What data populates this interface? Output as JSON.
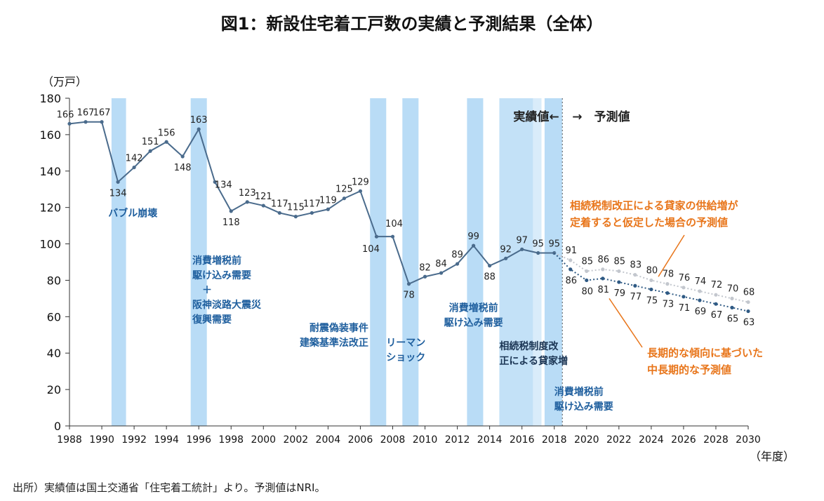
{
  "page": {
    "title": "図1：新設住宅着工戸数の実績と予測結果（全体）",
    "source": "出所）実績値は国土交通省「住宅着工統計」より。予測値はNRI。"
  },
  "colors": {
    "actual": "#4a6b8c",
    "forecast_high": "#c3c7ce",
    "forecast_low": "#2f5a84",
    "band": "#b9dcf6",
    "band_light": "#d9ecfa",
    "annotation": "#1f5f9e",
    "orange": "#e8751a"
  },
  "chart_data": {
    "type": "line",
    "title": "図1：新設住宅着工戸数の実績と予測結果（全体）",
    "ylabel": "（万戸）",
    "xlabel": "（年度）",
    "ylim": [
      0,
      180
    ],
    "xlim": [
      1988,
      2030
    ],
    "yticks": [
      0,
      20,
      40,
      60,
      80,
      100,
      120,
      140,
      160,
      180
    ],
    "xticks": [
      1988,
      1990,
      1992,
      1994,
      1996,
      1998,
      2000,
      2002,
      2004,
      2006,
      2008,
      2010,
      2012,
      2014,
      2016,
      2018,
      2020,
      2022,
      2024,
      2026,
      2028,
      2030
    ],
    "series": [
      {
        "name": "実績値",
        "x": [
          1988,
          1989,
          1990,
          1991,
          1992,
          1993,
          1994,
          1995,
          1996,
          1997,
          1998,
          1999,
          2000,
          2001,
          2002,
          2003,
          2004,
          2005,
          2006,
          2007,
          2008,
          2009,
          2010,
          2011,
          2012,
          2013,
          2014,
          2015,
          2016,
          2017,
          2018
        ],
        "values": [
          166,
          167,
          167,
          134,
          142,
          151,
          156,
          148,
          163,
          134,
          118,
          123,
          121,
          117,
          115,
          117,
          119,
          125,
          129,
          104,
          104,
          78,
          82,
          84,
          89,
          99,
          88,
          92,
          97,
          95,
          95
        ]
      },
      {
        "name": "相続税制改正による貸家の供給増が定着すると仮定した場合の予測値",
        "x": [
          2018,
          2019,
          2020,
          2021,
          2022,
          2023,
          2024,
          2025,
          2026,
          2027,
          2028,
          2029,
          2030
        ],
        "values": [
          95,
          91,
          85,
          86,
          85,
          83,
          80,
          78,
          76,
          74,
          72,
          70,
          68
        ]
      },
      {
        "name": "長期的な傾向に基づいた中長期的な予測値",
        "x": [
          2018,
          2019,
          2020,
          2021,
          2022,
          2023,
          2024,
          2025,
          2026,
          2027,
          2028,
          2029,
          2030
        ],
        "values": [
          95,
          86,
          80,
          81,
          79,
          77,
          75,
          73,
          71,
          69,
          67,
          65,
          63
        ]
      }
    ],
    "bands": [
      {
        "from": 1990.6,
        "to": 1991.5
      },
      {
        "from": 1995.5,
        "to": 1996.5
      },
      {
        "from": 2006.6,
        "to": 2007.6
      },
      {
        "from": 2008.6,
        "to": 2009.6
      },
      {
        "from": 2012.6,
        "to": 2013.6
      },
      {
        "from": 2014.6,
        "to": 2017.2
      },
      {
        "from": 2017.4,
        "to": 2018.5
      }
    ],
    "phase_labels": {
      "actual": "実績値←",
      "forecast": "→　予測値"
    },
    "annotations": [
      {
        "text": "バブル崩壊",
        "lines": [
          "バブル崩壊"
        ],
        "x": 1990.4,
        "y": 115
      },
      {
        "text": "消費増税前駆け込み需要＋阪神淡路大震災復興需要",
        "lines": [
          "消費増税前",
          "駆け込み需要",
          "＋",
          "阪神淡路大震災",
          "復興需要"
        ],
        "x": 1995.6,
        "y": 89
      },
      {
        "text": "耐震偽装事件建築基準法改正",
        "lines": [
          "耐震偽装事件",
          "建築基準法改正"
        ],
        "x": 2006.5,
        "y": 52,
        "align": "end"
      },
      {
        "text": "リーマンショック",
        "lines": [
          "リーマン",
          "ショック"
        ],
        "x": 2007.6,
        "y": 44
      },
      {
        "text": "消費増税前駆け込み需要",
        "lines": [
          "消費増税前",
          "駆け込み需要"
        ],
        "x": 2013.0,
        "y": 63,
        "align": "middle"
      },
      {
        "text": "相続税制度改正による貸家増",
        "lines": [
          "相続税制度改",
          "正による貸家増"
        ],
        "x": 2014.6,
        "y": 42,
        "dark": true
      },
      {
        "text": "消費増税前駆け込み需要",
        "lines": [
          "消費増税前",
          "駆け込み需要"
        ],
        "x": 2018.0,
        "y": 17
      }
    ],
    "forecast_notes": [
      {
        "lines": [
          "相続税制改正による貸家の供給増が",
          "定着すると仮定した場合の予測値"
        ]
      },
      {
        "lines": [
          "長期的な傾向に基づいた",
          "中長期的な予測値"
        ]
      }
    ]
  }
}
